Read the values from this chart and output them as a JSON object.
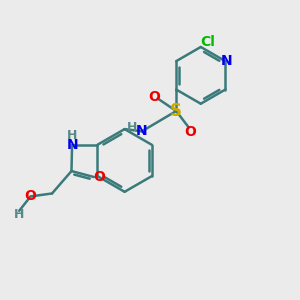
{
  "background_color": "#ebebeb",
  "bond_color": "#3a7a7a",
  "atom_colors": {
    "N": "#0000ee",
    "O": "#ee0000",
    "S": "#ccaa00",
    "Cl": "#00bb00",
    "H": "#5a8888",
    "C": "#3a7a7a"
  },
  "figsize": [
    3.0,
    3.0
  ],
  "dpi": 100
}
